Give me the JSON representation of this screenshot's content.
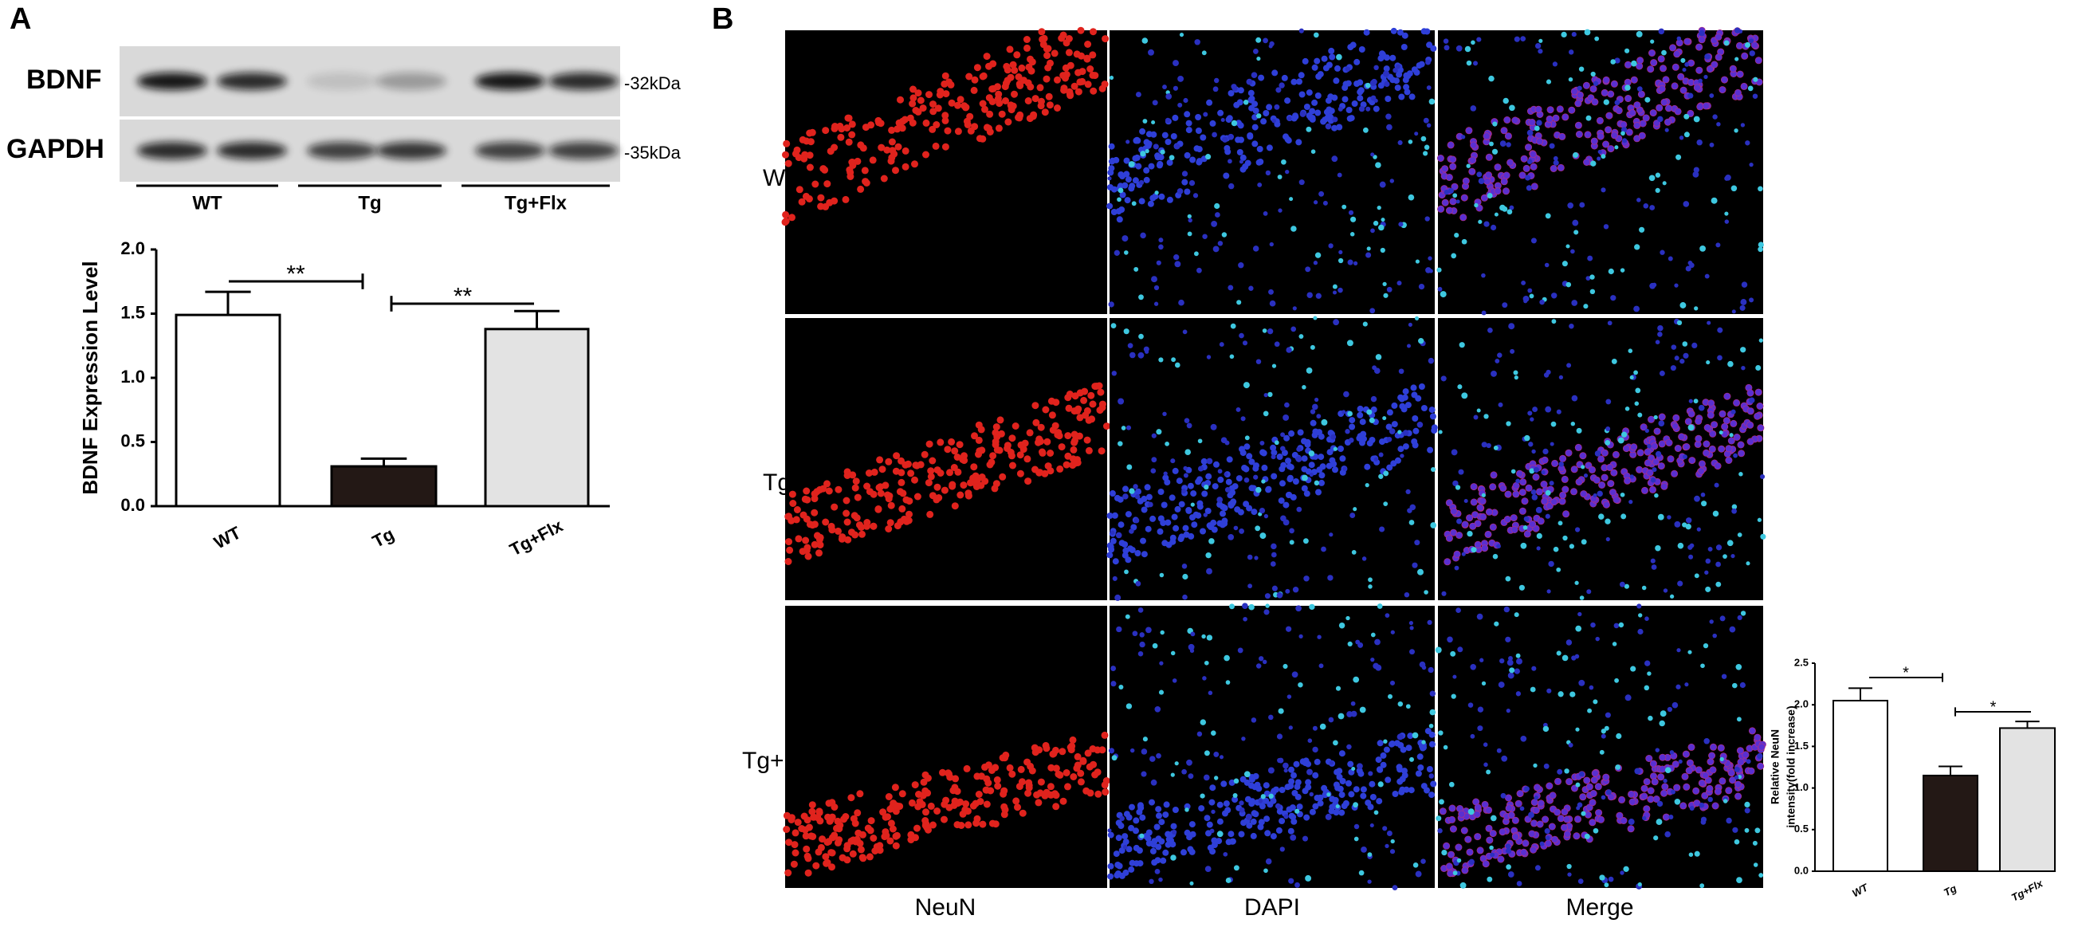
{
  "panels": [
    "A",
    "B"
  ],
  "blot": {
    "proteins": [
      {
        "name": "BDNF",
        "size": "-32kDa"
      },
      {
        "name": "GAPDH",
        "size": "-35kDa"
      }
    ],
    "groups": [
      "WT",
      "Tg",
      "Tg+Flx"
    ]
  },
  "micrographs": {
    "rows": [
      "WT",
      "Tg",
      "Tg+Flx"
    ],
    "columns": [
      "NeuN",
      "DAPI",
      "Merge"
    ]
  },
  "chart_data": [
    {
      "type": "bar",
      "ylabel": "BDNF Expression Level",
      "categories": [
        "WT",
        "Tg",
        "Tg+Flx"
      ],
      "values": [
        1.49,
        0.31,
        1.38
      ],
      "errors": [
        0.18,
        0.06,
        0.14
      ],
      "colors": [
        "#ffffff",
        "#231815",
        "#e3e3e3"
      ],
      "ylim": [
        0,
        2
      ],
      "yticks": [
        {
          "value": 0,
          "label": "0.0"
        },
        0.5,
        {
          "value": 1,
          "label": "1.0"
        },
        1.5,
        {
          "value": 2,
          "label": "2.0"
        }
      ],
      "annotations": [
        "**",
        "**"
      ]
    },
    {
      "type": "bar",
      "ylabel": [
        "Relative NeuN",
        "intensity(fold increase)"
      ],
      "categories": [
        "WT",
        "Tg",
        "Tg+Flx"
      ],
      "values": [
        2.05,
        1.15,
        1.72
      ],
      "errors": [
        0.15,
        0.11,
        0.08
      ],
      "colors": [
        "#ffffff",
        "#231815",
        "#e3e3e3"
      ],
      "ylim": [
        0,
        2.5
      ],
      "yticks": [
        {
          "value": 0,
          "label": "0.0"
        },
        0.5,
        {
          "value": 1,
          "label": "1.0"
        },
        1.5,
        {
          "value": 2,
          "label": "2.0"
        },
        2.5
      ],
      "annotations": [
        "*",
        "*"
      ]
    }
  ]
}
